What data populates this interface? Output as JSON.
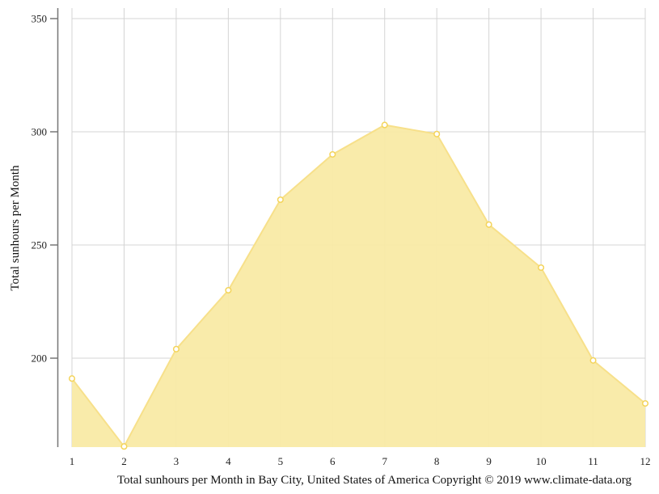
{
  "chart_data": {
    "type": "area",
    "title": "Total sunhours per Month in Bay City, United States of America Copyright © 2019 www.climate-data.org",
    "xlabel": "",
    "ylabel": "Total sunhours per Month",
    "categories": [
      "1",
      "2",
      "3",
      "4",
      "5",
      "6",
      "7",
      "8",
      "9",
      "10",
      "11",
      "12"
    ],
    "series": [
      {
        "name": "Total sunhours per Month",
        "values": [
          191,
          161,
          204,
          230,
          270,
          290,
          303,
          299,
          259,
          240,
          199,
          180
        ]
      }
    ],
    "y_ticks": [
      200,
      250,
      300,
      350
    ],
    "ylim": [
      160.7,
      354
    ],
    "grid": true,
    "legend": "none",
    "colors": {
      "fill": "#f9eaa5",
      "line": "#f7e08a",
      "marker_stroke": "#f4d45a",
      "grid": "#d4d4d4",
      "axis": "#777777"
    }
  },
  "labels": {
    "ylabel": "Total sunhours per Month",
    "caption": "Total sunhours per Month in Bay City, United States of America Copyright © 2019 www.climate-data.org"
  }
}
